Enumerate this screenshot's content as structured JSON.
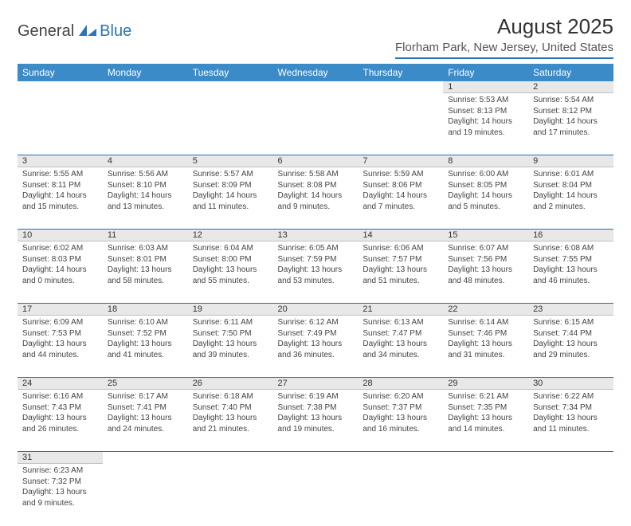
{
  "logo": {
    "general": "General",
    "blue": "Blue"
  },
  "title": "August 2025",
  "location": "Florham Park, New Jersey, United States",
  "colors": {
    "header_bg": "#3b8bc9",
    "accent": "#2a74b8",
    "daynum_bg": "#e8e8e8",
    "text": "#333333"
  },
  "day_headers": [
    "Sunday",
    "Monday",
    "Tuesday",
    "Wednesday",
    "Thursday",
    "Friday",
    "Saturday"
  ],
  "weeks": [
    [
      null,
      null,
      null,
      null,
      null,
      {
        "n": "1",
        "sr": "Sunrise: 5:53 AM",
        "ss": "Sunset: 8:13 PM",
        "d1": "Daylight: 14 hours",
        "d2": "and 19 minutes."
      },
      {
        "n": "2",
        "sr": "Sunrise: 5:54 AM",
        "ss": "Sunset: 8:12 PM",
        "d1": "Daylight: 14 hours",
        "d2": "and 17 minutes."
      }
    ],
    [
      {
        "n": "3",
        "sr": "Sunrise: 5:55 AM",
        "ss": "Sunset: 8:11 PM",
        "d1": "Daylight: 14 hours",
        "d2": "and 15 minutes."
      },
      {
        "n": "4",
        "sr": "Sunrise: 5:56 AM",
        "ss": "Sunset: 8:10 PM",
        "d1": "Daylight: 14 hours",
        "d2": "and 13 minutes."
      },
      {
        "n": "5",
        "sr": "Sunrise: 5:57 AM",
        "ss": "Sunset: 8:09 PM",
        "d1": "Daylight: 14 hours",
        "d2": "and 11 minutes."
      },
      {
        "n": "6",
        "sr": "Sunrise: 5:58 AM",
        "ss": "Sunset: 8:08 PM",
        "d1": "Daylight: 14 hours",
        "d2": "and 9 minutes."
      },
      {
        "n": "7",
        "sr": "Sunrise: 5:59 AM",
        "ss": "Sunset: 8:06 PM",
        "d1": "Daylight: 14 hours",
        "d2": "and 7 minutes."
      },
      {
        "n": "8",
        "sr": "Sunrise: 6:00 AM",
        "ss": "Sunset: 8:05 PM",
        "d1": "Daylight: 14 hours",
        "d2": "and 5 minutes."
      },
      {
        "n": "9",
        "sr": "Sunrise: 6:01 AM",
        "ss": "Sunset: 8:04 PM",
        "d1": "Daylight: 14 hours",
        "d2": "and 2 minutes."
      }
    ],
    [
      {
        "n": "10",
        "sr": "Sunrise: 6:02 AM",
        "ss": "Sunset: 8:03 PM",
        "d1": "Daylight: 14 hours",
        "d2": "and 0 minutes."
      },
      {
        "n": "11",
        "sr": "Sunrise: 6:03 AM",
        "ss": "Sunset: 8:01 PM",
        "d1": "Daylight: 13 hours",
        "d2": "and 58 minutes."
      },
      {
        "n": "12",
        "sr": "Sunrise: 6:04 AM",
        "ss": "Sunset: 8:00 PM",
        "d1": "Daylight: 13 hours",
        "d2": "and 55 minutes."
      },
      {
        "n": "13",
        "sr": "Sunrise: 6:05 AM",
        "ss": "Sunset: 7:59 PM",
        "d1": "Daylight: 13 hours",
        "d2": "and 53 minutes."
      },
      {
        "n": "14",
        "sr": "Sunrise: 6:06 AM",
        "ss": "Sunset: 7:57 PM",
        "d1": "Daylight: 13 hours",
        "d2": "and 51 minutes."
      },
      {
        "n": "15",
        "sr": "Sunrise: 6:07 AM",
        "ss": "Sunset: 7:56 PM",
        "d1": "Daylight: 13 hours",
        "d2": "and 48 minutes."
      },
      {
        "n": "16",
        "sr": "Sunrise: 6:08 AM",
        "ss": "Sunset: 7:55 PM",
        "d1": "Daylight: 13 hours",
        "d2": "and 46 minutes."
      }
    ],
    [
      {
        "n": "17",
        "sr": "Sunrise: 6:09 AM",
        "ss": "Sunset: 7:53 PM",
        "d1": "Daylight: 13 hours",
        "d2": "and 44 minutes."
      },
      {
        "n": "18",
        "sr": "Sunrise: 6:10 AM",
        "ss": "Sunset: 7:52 PM",
        "d1": "Daylight: 13 hours",
        "d2": "and 41 minutes."
      },
      {
        "n": "19",
        "sr": "Sunrise: 6:11 AM",
        "ss": "Sunset: 7:50 PM",
        "d1": "Daylight: 13 hours",
        "d2": "and 39 minutes."
      },
      {
        "n": "20",
        "sr": "Sunrise: 6:12 AM",
        "ss": "Sunset: 7:49 PM",
        "d1": "Daylight: 13 hours",
        "d2": "and 36 minutes."
      },
      {
        "n": "21",
        "sr": "Sunrise: 6:13 AM",
        "ss": "Sunset: 7:47 PM",
        "d1": "Daylight: 13 hours",
        "d2": "and 34 minutes."
      },
      {
        "n": "22",
        "sr": "Sunrise: 6:14 AM",
        "ss": "Sunset: 7:46 PM",
        "d1": "Daylight: 13 hours",
        "d2": "and 31 minutes."
      },
      {
        "n": "23",
        "sr": "Sunrise: 6:15 AM",
        "ss": "Sunset: 7:44 PM",
        "d1": "Daylight: 13 hours",
        "d2": "and 29 minutes."
      }
    ],
    [
      {
        "n": "24",
        "sr": "Sunrise: 6:16 AM",
        "ss": "Sunset: 7:43 PM",
        "d1": "Daylight: 13 hours",
        "d2": "and 26 minutes."
      },
      {
        "n": "25",
        "sr": "Sunrise: 6:17 AM",
        "ss": "Sunset: 7:41 PM",
        "d1": "Daylight: 13 hours",
        "d2": "and 24 minutes."
      },
      {
        "n": "26",
        "sr": "Sunrise: 6:18 AM",
        "ss": "Sunset: 7:40 PM",
        "d1": "Daylight: 13 hours",
        "d2": "and 21 minutes."
      },
      {
        "n": "27",
        "sr": "Sunrise: 6:19 AM",
        "ss": "Sunset: 7:38 PM",
        "d1": "Daylight: 13 hours",
        "d2": "and 19 minutes."
      },
      {
        "n": "28",
        "sr": "Sunrise: 6:20 AM",
        "ss": "Sunset: 7:37 PM",
        "d1": "Daylight: 13 hours",
        "d2": "and 16 minutes."
      },
      {
        "n": "29",
        "sr": "Sunrise: 6:21 AM",
        "ss": "Sunset: 7:35 PM",
        "d1": "Daylight: 13 hours",
        "d2": "and 14 minutes."
      },
      {
        "n": "30",
        "sr": "Sunrise: 6:22 AM",
        "ss": "Sunset: 7:34 PM",
        "d1": "Daylight: 13 hours",
        "d2": "and 11 minutes."
      }
    ],
    [
      {
        "n": "31",
        "sr": "Sunrise: 6:23 AM",
        "ss": "Sunset: 7:32 PM",
        "d1": "Daylight: 13 hours",
        "d2": "and 9 minutes."
      },
      null,
      null,
      null,
      null,
      null,
      null
    ]
  ]
}
